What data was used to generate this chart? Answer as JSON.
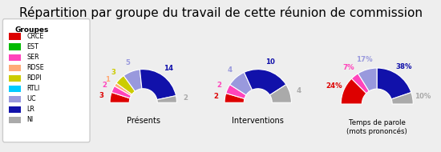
{
  "title": "Répartition par groupe du travail de cette réunion de commission",
  "groups": [
    "CRCE",
    "EST",
    "SER",
    "RDSE",
    "RDPI",
    "RTLI",
    "UC",
    "LR",
    "NI"
  ],
  "colors": [
    "#dd0000",
    "#00bb00",
    "#ff44bb",
    "#ffaa77",
    "#cccc00",
    "#00ccff",
    "#9999dd",
    "#1111aa",
    "#aaaaaa"
  ],
  "presences": [
    3,
    0,
    2,
    1,
    3,
    0,
    5,
    14,
    2
  ],
  "interventions": [
    2,
    0,
    2,
    0,
    0,
    0,
    4,
    10,
    4
  ],
  "temps_pct": [
    24,
    0,
    7,
    0,
    0,
    0,
    17,
    38,
    10
  ],
  "legend_title": "Groupes",
  "chart_labels": [
    "Présents",
    "Interventions",
    "Temps de parole\n(mots prononcés)"
  ],
  "background_color": "#eeeeee",
  "title_fontsize": 11
}
